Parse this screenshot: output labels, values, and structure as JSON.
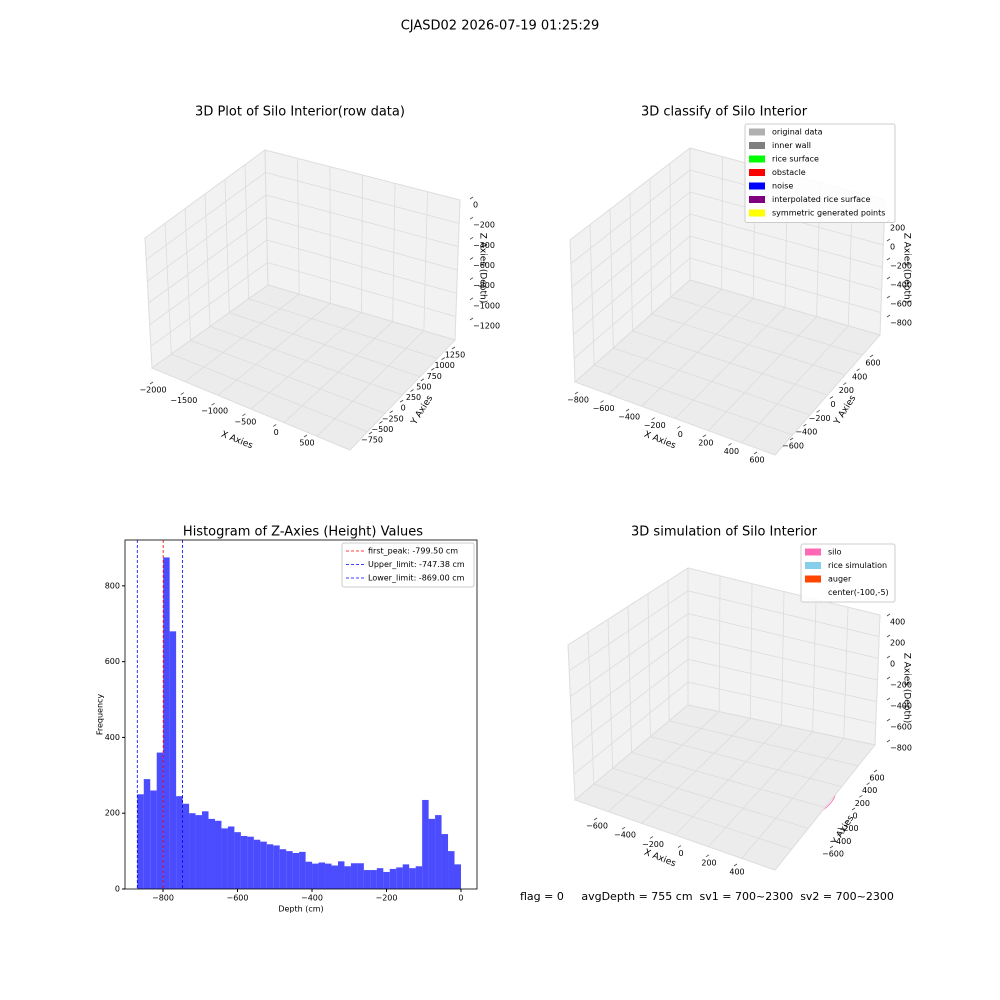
{
  "suptitle": "CJASD02 2026-07-19 01:25:29",
  "footer": "flag = 0     avgDepth = 755 cm  sv1 = 700~2300  sv2 = 700~2300",
  "chart_data": [
    {
      "type": "scatter3d",
      "title": "3D Plot of Silo Interior(row data)",
      "xlabel": "X Axies",
      "ylabel": "Y Axies",
      "zlabel": "Z Axies (Depth)",
      "xticks": [
        {
          "value": -2000,
          "label": "−2000"
        },
        {
          "value": -1500,
          "label": "−1500"
        },
        {
          "value": -1000,
          "label": "−1000"
        },
        {
          "value": -500,
          "label": "−500"
        },
        0,
        500
      ],
      "yticks": [
        {
          "value": -750,
          "label": "−750"
        },
        {
          "value": -500,
          "label": "−500"
        },
        {
          "value": -250,
          "label": "−250"
        },
        0,
        250,
        500,
        750,
        1000,
        1250
      ],
      "zticks": [
        0,
        {
          "value": -200,
          "label": "−200"
        },
        {
          "value": -400,
          "label": "−400"
        },
        {
          "value": -600,
          "label": "−600"
        },
        {
          "value": -800,
          "label": "−800"
        },
        {
          "value": -1000,
          "label": "−1000"
        },
        {
          "value": -1200,
          "label": "−1200"
        }
      ]
    },
    {
      "type": "scatter3d",
      "title": "3D classify of Silo Interior",
      "xlabel": "X Axies",
      "ylabel": "Y Axies",
      "zlabel": "Z Axies (Depth)",
      "xticks": [
        {
          "value": -800,
          "label": "−800"
        },
        {
          "value": -600,
          "label": "−600"
        },
        {
          "value": -400,
          "label": "−400"
        },
        {
          "value": -200,
          "label": "−200"
        },
        0,
        200,
        400,
        600
      ],
      "yticks": [
        {
          "value": -600,
          "label": "−600"
        },
        {
          "value": -400,
          "label": "−400"
        },
        {
          "value": -200,
          "label": "−200"
        },
        0,
        200,
        400,
        600
      ],
      "zticks": [
        200,
        0,
        {
          "value": -200,
          "label": "−200"
        },
        {
          "value": -400,
          "label": "−400"
        },
        {
          "value": -600,
          "label": "−600"
        },
        {
          "value": -800,
          "label": "−800"
        }
      ],
      "legend": [
        {
          "name": "original data",
          "color": "#b0b0b0"
        },
        {
          "name": "inner wall",
          "color": "#808080"
        },
        {
          "name": "rice surface",
          "color": "#00ff00"
        },
        {
          "name": "obstacle",
          "color": "#ff0000"
        },
        {
          "name": "noise",
          "color": "#0000ff"
        },
        {
          "name": "interpolated rice surface",
          "color": "#800080"
        },
        {
          "name": "symmetric generated points",
          "color": "#ffff00"
        }
      ]
    },
    {
      "type": "histogram",
      "title": "Histogram of Z-Axies (Height) Values",
      "xlabel": "Depth (cm)",
      "ylabel": "Frequency",
      "color": "#0000ff",
      "bins": [
        -869,
        -851.62,
        -834.24,
        -816.86,
        -799.48,
        -782.1,
        -764.72,
        -747.34,
        -729.96,
        -712.58,
        -695.2,
        -677.82,
        -660.44,
        -643.06,
        -625.68,
        -608.3,
        -590.92,
        -573.54,
        -556.16,
        -538.78,
        -521.4,
        -504.02,
        -486.64,
        -469.26,
        -451.88,
        -434.5,
        -417.12,
        -399.74,
        -382.36,
        -364.98,
        -347.6,
        -330.22,
        -312.84,
        -295.46,
        -278.08,
        -260.7,
        -243.32,
        -225.94,
        -208.56,
        -191.18,
        -173.8,
        -156.42,
        -139.04,
        -121.66,
        -104.28,
        -86.9,
        -69.52,
        -52.14,
        -34.76,
        -17.38,
        0
      ],
      "values": [
        250,
        290,
        260,
        360,
        875,
        680,
        245,
        225,
        200,
        195,
        205,
        185,
        180,
        160,
        165,
        150,
        140,
        138,
        130,
        125,
        118,
        115,
        105,
        100,
        95,
        98,
        72,
        67,
        70,
        67,
        62,
        73,
        60,
        68,
        68,
        50,
        50,
        55,
        45,
        53,
        57,
        65,
        55,
        60,
        235,
        185,
        195,
        145,
        100,
        65
      ],
      "xlim": [
        -902,
        43
      ],
      "ylim": [
        0,
        921
      ],
      "xticks": [
        {
          "value": -800,
          "label": "−800"
        },
        {
          "value": -600,
          "label": "−600"
        },
        {
          "value": -400,
          "label": "−400"
        },
        {
          "value": -200,
          "label": "−200"
        },
        0
      ],
      "yticks": [
        0,
        200,
        400,
        600,
        800
      ],
      "vlines": [
        {
          "label": "first_peak: -799.50 cm",
          "value": -799.5,
          "color": "#ff0000"
        },
        {
          "label": "Upper_limit: -747.38 cm",
          "value": -747.38,
          "color": "#0000ff"
        },
        {
          "label": "Lower_limit: -869.00 cm",
          "value": -869,
          "color": "#0000ff"
        }
      ]
    },
    {
      "type": "surface3d",
      "title": "3D simulation of Silo Interior",
      "xlabel": "X Axies",
      "ylabel": "Y Axies",
      "zlabel": "Z Axies (Depth)",
      "xticks": [
        {
          "value": -600,
          "label": "−600"
        },
        {
          "value": -400,
          "label": "−400"
        },
        {
          "value": -200,
          "label": "−200"
        },
        0,
        200,
        400
      ],
      "yticks": [
        {
          "value": -600,
          "label": "−600"
        },
        {
          "value": -400,
          "label": "−400"
        },
        {
          "value": -200,
          "label": "−200"
        },
        0,
        200,
        400,
        600
      ],
      "zticks": [
        400,
        200,
        0,
        {
          "value": -200,
          "label": "−200"
        },
        {
          "value": -400,
          "label": "−400"
        },
        {
          "value": -600,
          "label": "−600"
        },
        {
          "value": -800,
          "label": "−800"
        }
      ],
      "legend": [
        {
          "name": "silo",
          "color": "#ff69b4"
        },
        {
          "name": "rice simulation",
          "color": "#87ceeb"
        },
        {
          "name": "auger",
          "color": "#ff4500"
        },
        {
          "name": "center(-100,-5)",
          "color": null
        }
      ]
    }
  ]
}
